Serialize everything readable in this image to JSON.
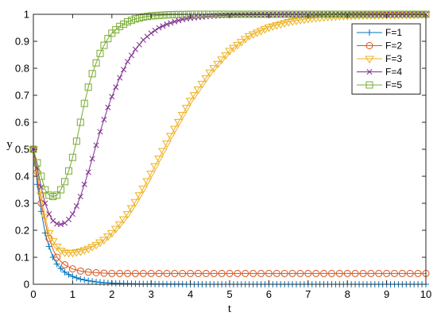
{
  "chart_data": {
    "type": "line",
    "xlabel": "t",
    "ylabel": "y",
    "xlim": [
      0,
      10
    ],
    "ylim": [
      0,
      1
    ],
    "xticks": [
      "0",
      "1",
      "2",
      "3",
      "4",
      "5",
      "6",
      "7",
      "8",
      "9",
      "10"
    ],
    "yticks": [
      "0",
      "0.1",
      "0.2",
      "0.3",
      "0.4",
      "0.5",
      "0.6",
      "0.7",
      "0.8",
      "0.9",
      "1"
    ],
    "grid": false,
    "legend_position": "top-right",
    "series": [
      {
        "name": "F=1",
        "color": "#0072BD",
        "marker": "plus",
        "x": [
          0,
          0.1,
          0.2,
          0.3,
          0.4,
          0.5,
          0.6,
          0.7,
          0.8,
          0.9,
          1.0,
          1.2,
          1.4,
          1.6,
          1.8,
          2.0,
          2.5,
          3.0,
          4.0,
          5.0,
          6.0,
          7.0,
          8.0,
          9.0,
          10.0
        ],
        "y": [
          0.5,
          0.37,
          0.27,
          0.19,
          0.14,
          0.1,
          0.075,
          0.058,
          0.045,
          0.036,
          0.029,
          0.019,
          0.013,
          0.009,
          0.006,
          0.004,
          0.002,
          0.001,
          0.0,
          0.0,
          0.0,
          0.0,
          0.0,
          0.0,
          0.0
        ]
      },
      {
        "name": "F=2",
        "color": "#D95319",
        "marker": "circle",
        "x": [
          0,
          0.1,
          0.2,
          0.3,
          0.4,
          0.5,
          0.6,
          0.7,
          0.8,
          0.9,
          1.0,
          1.2,
          1.4,
          1.6,
          1.8,
          2.0,
          2.5,
          3.0,
          4.0,
          5.0,
          6.0,
          7.0,
          8.0,
          9.0,
          10.0
        ],
        "y": [
          0.5,
          0.39,
          0.3,
          0.23,
          0.17,
          0.13,
          0.1,
          0.085,
          0.072,
          0.064,
          0.057,
          0.049,
          0.045,
          0.043,
          0.041,
          0.04,
          0.04,
          0.04,
          0.04,
          0.04,
          0.04,
          0.04,
          0.04,
          0.04,
          0.04
        ]
      },
      {
        "name": "F=3",
        "color": "#EDB120",
        "marker": "triangle-down",
        "x": [
          0,
          0.1,
          0.2,
          0.3,
          0.4,
          0.5,
          0.6,
          0.7,
          0.8,
          0.9,
          1.0,
          1.2,
          1.4,
          1.6,
          1.8,
          2.0,
          2.2,
          2.4,
          2.6,
          2.8,
          3.0,
          3.5,
          4.0,
          4.5,
          5.0,
          5.5,
          6.0,
          6.5,
          7.0,
          7.5,
          8.0,
          8.5,
          9.0,
          9.5,
          10.0
        ],
        "y": [
          0.5,
          0.41,
          0.33,
          0.25,
          0.19,
          0.16,
          0.14,
          0.125,
          0.118,
          0.116,
          0.117,
          0.122,
          0.132,
          0.146,
          0.165,
          0.19,
          0.222,
          0.26,
          0.305,
          0.355,
          0.41,
          0.55,
          0.68,
          0.785,
          0.865,
          0.92,
          0.952,
          0.972,
          0.984,
          0.991,
          0.995,
          0.997,
          0.998,
          0.999,
          1.0
        ]
      },
      {
        "name": "F=4",
        "color": "#7E2F8E",
        "marker": "x",
        "x": [
          0,
          0.1,
          0.2,
          0.3,
          0.4,
          0.5,
          0.6,
          0.7,
          0.8,
          0.9,
          1.0,
          1.1,
          1.2,
          1.3,
          1.4,
          1.5,
          1.6,
          1.7,
          1.8,
          1.9,
          2.0,
          2.2,
          2.4,
          2.6,
          2.8,
          3.0,
          3.2,
          3.4,
          3.6,
          3.8,
          4.0,
          4.5,
          5.0,
          5.5,
          6.0,
          7.0,
          8.0,
          9.0,
          10.0
        ],
        "y": [
          0.5,
          0.43,
          0.36,
          0.3,
          0.26,
          0.235,
          0.224,
          0.222,
          0.227,
          0.24,
          0.26,
          0.29,
          0.325,
          0.37,
          0.415,
          0.465,
          0.515,
          0.565,
          0.61,
          0.655,
          0.695,
          0.765,
          0.825,
          0.87,
          0.905,
          0.93,
          0.95,
          0.963,
          0.973,
          0.981,
          0.986,
          0.993,
          0.997,
          0.998,
          0.999,
          1.0,
          1.0,
          1.0,
          1.0
        ]
      },
      {
        "name": "F=5",
        "color": "#77AC30",
        "marker": "square",
        "x": [
          0,
          0.1,
          0.2,
          0.3,
          0.4,
          0.5,
          0.6,
          0.7,
          0.8,
          0.9,
          1.0,
          1.1,
          1.2,
          1.3,
          1.4,
          1.5,
          1.6,
          1.7,
          1.8,
          1.9,
          2.0,
          2.2,
          2.4,
          2.6,
          2.8,
          3.0,
          3.2,
          3.4,
          3.6,
          3.8,
          4.0,
          4.5,
          5.0,
          5.5,
          6.0,
          7.0,
          8.0,
          9.0,
          10.0
        ],
        "y": [
          0.5,
          0.45,
          0.4,
          0.35,
          0.33,
          0.325,
          0.33,
          0.35,
          0.38,
          0.42,
          0.47,
          0.53,
          0.6,
          0.67,
          0.73,
          0.78,
          0.82,
          0.855,
          0.885,
          0.91,
          0.93,
          0.955,
          0.972,
          0.983,
          0.99,
          0.994,
          0.996,
          0.998,
          0.999,
          0.999,
          1.0,
          1.0,
          1.0,
          1.0,
          1.0,
          1.0,
          1.0,
          1.0,
          1.0
        ]
      }
    ]
  }
}
